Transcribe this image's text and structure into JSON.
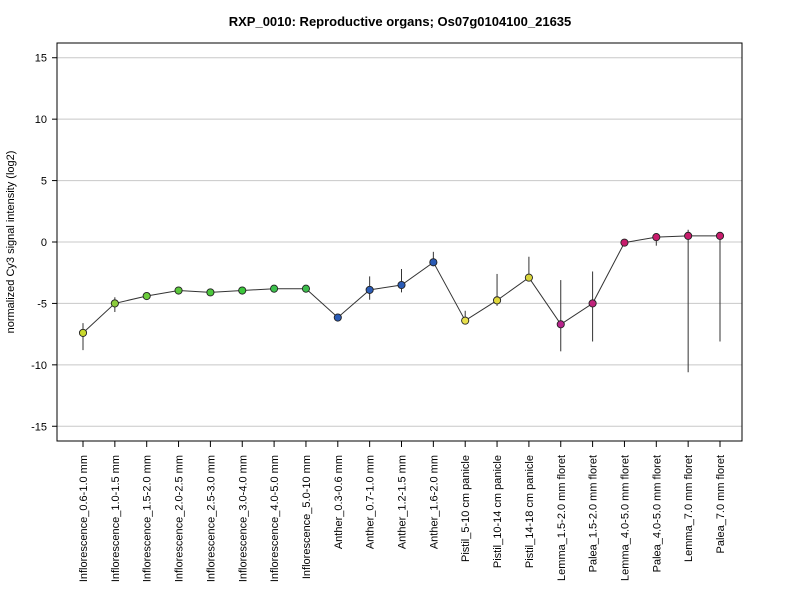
{
  "chart_data": {
    "type": "line",
    "title": "RXP_0010: Reproductive organs; Os07g0104100_21635",
    "ylabel": "normalized Cy3 signal intensity (log2)",
    "xlabel": "",
    "ylim": [
      -16.2,
      16.2
    ],
    "yticks": [
      -15,
      -10,
      -5,
      0,
      5,
      10,
      15
    ],
    "grid": true,
    "categories": [
      "Inflorescence_0.6-1.0 mm",
      "Inflorescence_1.0-1.5 mm",
      "Inflorescence_1.5-2.0 mm",
      "Inflorescence_2.0-2.5 mm",
      "Inflorescence_2.5-3.0 mm",
      "Inflorescence_3.0-4.0 mm",
      "Inflorescence_4.0-5.0 mm",
      "Inflorescence_5.0-10 mm",
      "Anther_0.3-0.6 mm",
      "Anther_0.7-1.0 mm",
      "Anther_1.2-1.5 mm",
      "Anther_1.6-2.0 mm",
      "Pistil_5-10 cm panicle",
      "Pistil_10-14 cm panicle",
      "Pistil_14-18 cm panicle",
      "Lemma_1.5-2.0 mm floret",
      "Palea_1.5-2.0 mm floret",
      "Lemma_4.0-5.0 mm floret",
      "Palea_4.0-5.0 mm floret",
      "Lemma_7.0 mm floret",
      "Palea_7.0 mm floret"
    ],
    "values": [
      -7.4,
      -5.0,
      -4.4,
      -3.95,
      -4.1,
      -3.95,
      -3.8,
      -3.8,
      -6.15,
      -3.9,
      -3.5,
      -1.65,
      -6.4,
      -4.75,
      -2.9,
      -6.7,
      -5.0,
      -0.05,
      0.4,
      0.5,
      0.5
    ],
    "error_low": [
      -8.8,
      -5.7,
      -4.4,
      -3.95,
      -4.1,
      -3.95,
      -3.8,
      -3.8,
      -6.15,
      -4.7,
      -4.1,
      -1.65,
      -6.4,
      -5.2,
      -2.9,
      -8.9,
      -8.1,
      -0.05,
      -0.3,
      -10.6,
      -8.1
    ],
    "error_high": [
      -6.6,
      -4.5,
      -4.4,
      -3.95,
      -4.1,
      -3.95,
      -3.8,
      -3.8,
      -6.15,
      -2.8,
      -2.2,
      -0.8,
      -5.6,
      -2.6,
      -1.2,
      -3.1,
      -2.4,
      -0.05,
      0.4,
      1.0,
      0.5
    ],
    "point_colors": [
      "#c8d82c",
      "#8ccc3c",
      "#6ccc3c",
      "#5cc83c",
      "#4cc83c",
      "#3cc83c",
      "#3cc04c",
      "#3cbc4c",
      "#2a5bb5",
      "#2a5bb5",
      "#2a5bb5",
      "#2a5bb5",
      "#e8e04c",
      "#e0d83c",
      "#d8d43c",
      "#b8248c",
      "#c0247c",
      "#c81c6c",
      "#c81c6c",
      "#c81c6c",
      "#c81c6c"
    ],
    "line_color": "#333333"
  }
}
